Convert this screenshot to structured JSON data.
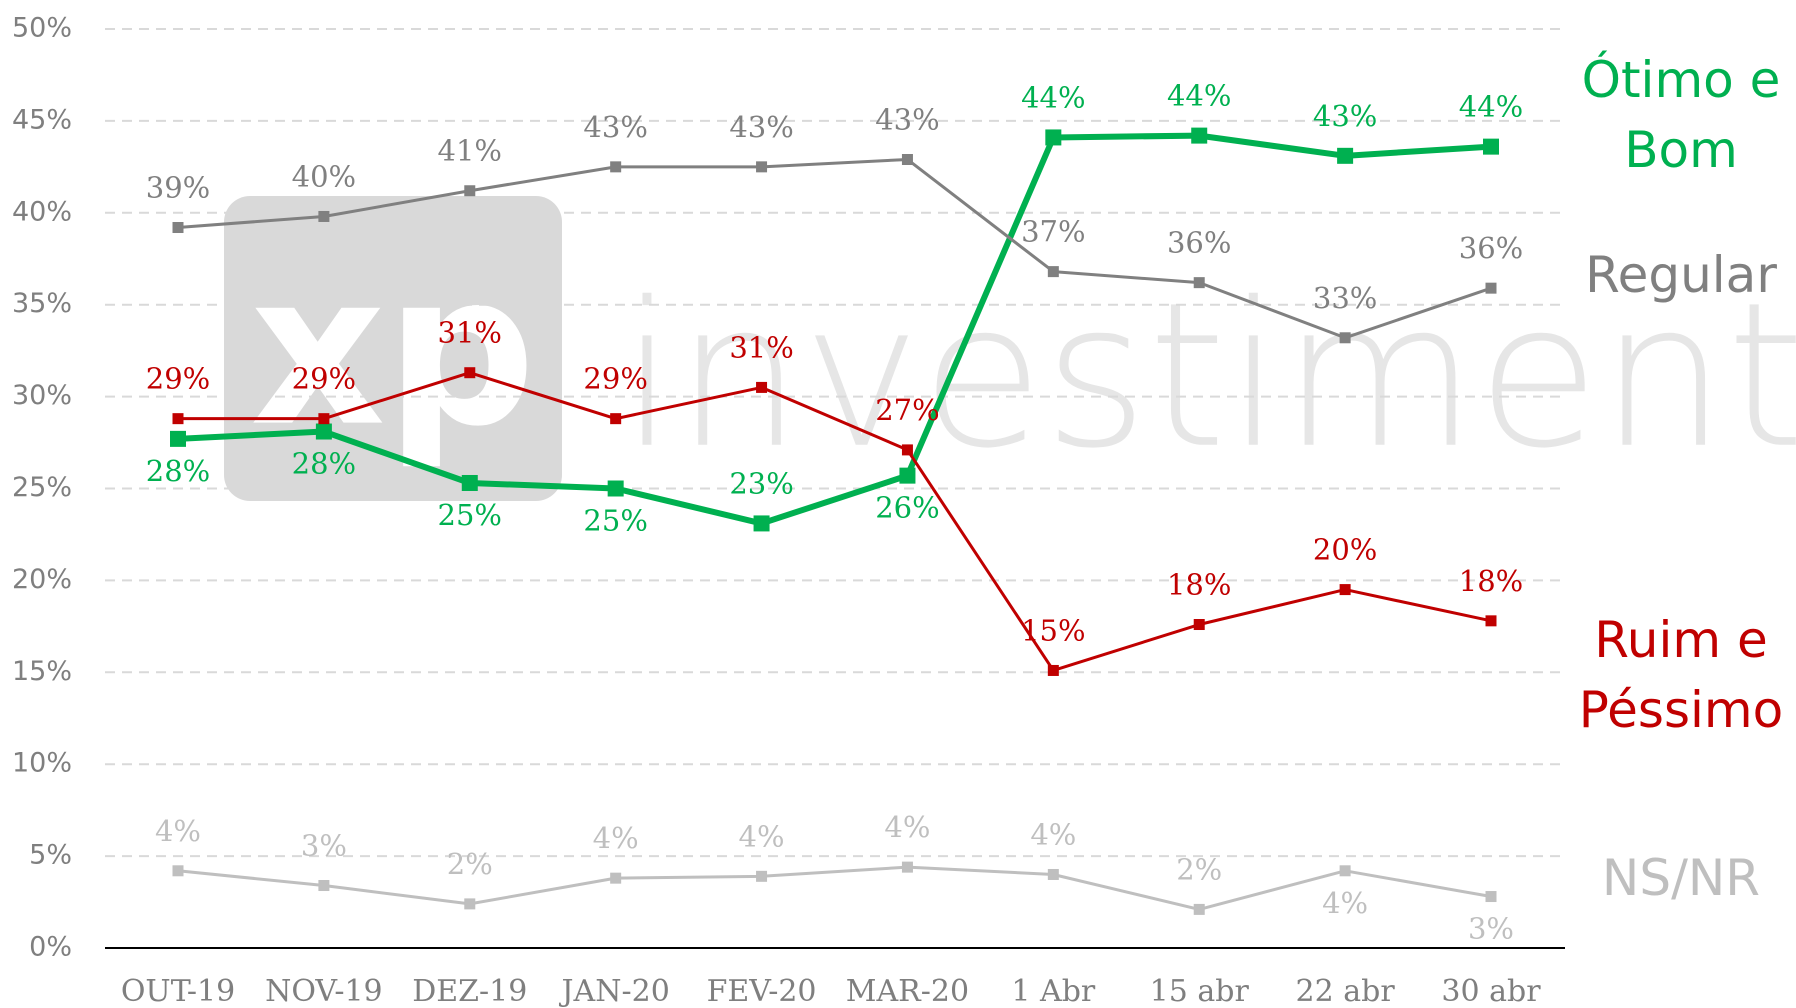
{
  "chart_data": {
    "type": "line",
    "categories": [
      "OUT-19",
      "NOV-19",
      "DEZ-19",
      "JAN-20",
      "FEV-20",
      "MAR-20",
      "1 Abr",
      "15 abr",
      "22 abr",
      "30 abr"
    ],
    "series": [
      {
        "name": "Ótimo e Bom",
        "color": "#00b050",
        "values": [
          27.7,
          28.1,
          25.3,
          25.0,
          23.1,
          25.7,
          44.1,
          44.2,
          43.1,
          43.6
        ],
        "value_labels": [
          "28%",
          "28%",
          "25%",
          "25%",
          "23%",
          "26%",
          "44%",
          "44%",
          "43%",
          "44%"
        ]
      },
      {
        "name": "Regular",
        "color": "#808080",
        "values": [
          39.2,
          39.8,
          41.2,
          42.5,
          42.5,
          42.9,
          36.8,
          36.2,
          33.2,
          35.9
        ],
        "value_labels": [
          "39%",
          "40%",
          "41%",
          "43%",
          "43%",
          "43%",
          "37%",
          "36%",
          "33%",
          "36%"
        ]
      },
      {
        "name": "Ruim e Péssimo",
        "color": "#c00000",
        "values": [
          28.8,
          28.8,
          31.3,
          28.8,
          30.5,
          27.1,
          15.1,
          17.6,
          19.5,
          17.8
        ],
        "value_labels": [
          "29%",
          "29%",
          "31%",
          "29%",
          "31%",
          "27%",
          "15%",
          "18%",
          "20%",
          "18%"
        ]
      },
      {
        "name": "NS/NR",
        "color": "#bfbfbf",
        "values": [
          4.2,
          3.4,
          2.4,
          3.8,
          3.9,
          4.4,
          4.0,
          2.1,
          4.2,
          2.8
        ],
        "value_labels": [
          "4%",
          "3%",
          "2%",
          "4%",
          "4%",
          "4%",
          "4%",
          "2%",
          "4%",
          "3%"
        ]
      }
    ],
    "ylim": [
      0,
      50
    ],
    "yticks": [
      {
        "value": 0,
        "label": "0%"
      },
      {
        "value": 5,
        "label": "5%"
      },
      {
        "value": 10,
        "label": "10%"
      },
      {
        "value": 15,
        "label": "15%"
      },
      {
        "value": 20,
        "label": "20%"
      },
      {
        "value": 25,
        "label": "25%"
      },
      {
        "value": 30,
        "label": "30%"
      },
      {
        "value": 35,
        "label": "35%"
      },
      {
        "value": 40,
        "label": "40%"
      },
      {
        "value": 45,
        "label": "45%"
      },
      {
        "value": 50,
        "label": "50%"
      }
    ],
    "grid": true,
    "watermark": {
      "logo": "xp",
      "text": "investimentos"
    }
  }
}
